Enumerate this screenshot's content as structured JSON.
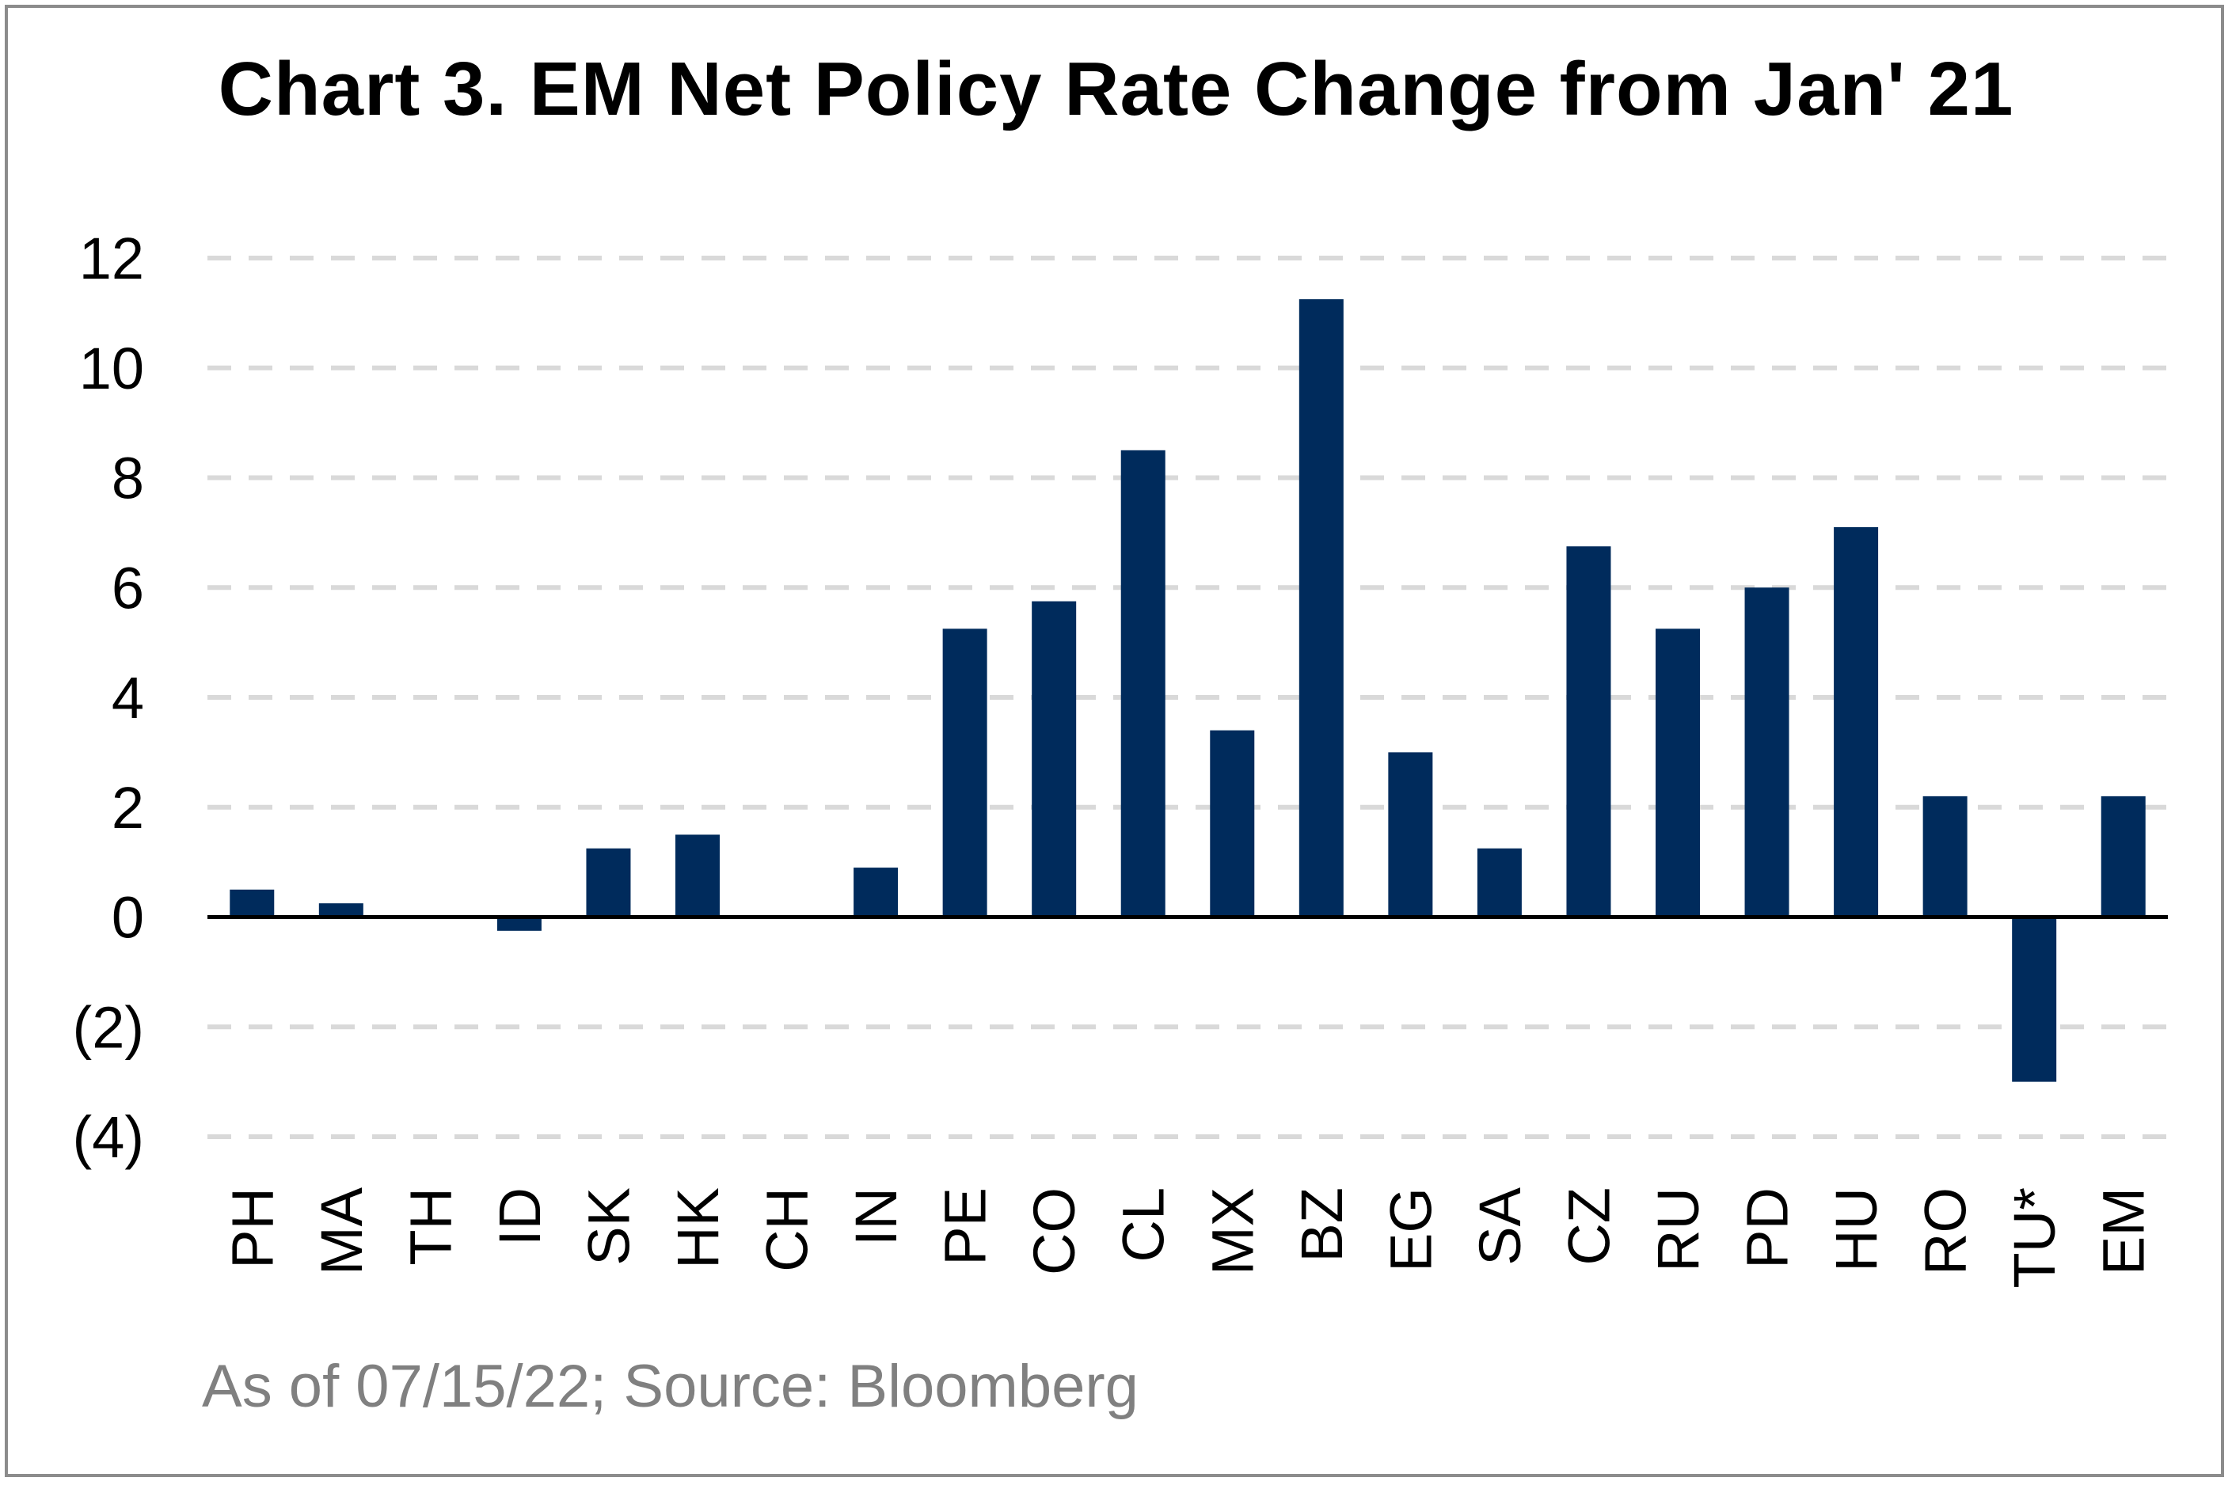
{
  "chart_data": {
    "type": "bar",
    "title": "Chart 3. EM Net Policy Rate Change from Jan' 21",
    "xlabel": "",
    "ylabel": "",
    "categories": [
      "PH",
      "MA",
      "TH",
      "ID",
      "SK",
      "HK",
      "CH",
      "IN",
      "PE",
      "CO",
      "CL",
      "MX",
      "BZ",
      "EG",
      "SA",
      "CZ",
      "RU",
      "PD",
      "HU",
      "RO",
      "TU*",
      "EM"
    ],
    "values": [
      0.5,
      0.25,
      0,
      -0.25,
      1.25,
      1.5,
      0,
      0.9,
      5.25,
      5.75,
      8.5,
      3.4,
      11.25,
      3.0,
      1.25,
      6.75,
      5.25,
      6.0,
      7.1,
      2.2,
      -3.0,
      2.2
    ],
    "ylim": [
      -4,
      12
    ],
    "yticks": [
      12,
      10,
      8,
      6,
      4,
      2,
      0,
      -2,
      -4
    ],
    "ytick_labels": [
      "12",
      "10",
      "8",
      "6",
      "4",
      "2",
      "0",
      "(2)",
      "(4)"
    ],
    "grid": true,
    "legend": "none",
    "bar_color": "#002b5c",
    "grid_color": "#d9d9d9"
  },
  "footnote": "As of 07/15/22; Source: Bloomberg"
}
